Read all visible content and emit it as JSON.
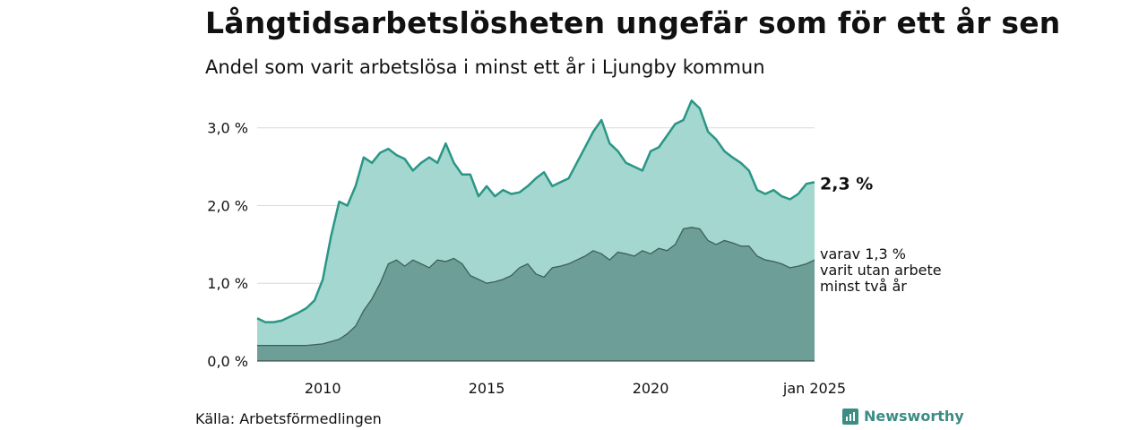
{
  "title": "Långtidsarbetslösheten ungefär som för ett år sen",
  "subtitle": "Andel som varit arbetslösa i minst ett år i Ljungby kommun",
  "source": "Källa: Arbetsförmedlingen",
  "brand": {
    "name": "Newsworthy",
    "icon": "newsworthy-logo-icon",
    "color": "#3c8c84"
  },
  "chart_data": {
    "type": "area",
    "x_tick_labels": [
      "2010",
      "2015",
      "2020",
      "jan 2025"
    ],
    "y_tick_labels": [
      "0,0 %",
      "1,0 %",
      "2,0 %",
      "3,0 %"
    ],
    "ylim": [
      0,
      3.4
    ],
    "grid": true,
    "x_start": 2008.0,
    "x_end": 2025.0,
    "end_labels": {
      "total": "2,3 %",
      "long": [
        "varav 1,3 %",
        "varit utan arbete",
        "minst två år"
      ]
    },
    "colors": {
      "total_fill": "#a3d7cf",
      "total_line": "#2a9686",
      "long_fill": "#6d9e97",
      "long_line": "#3f5f5a",
      "grid": "#d9d9d9"
    },
    "series": [
      {
        "name": "Minst ett år",
        "points": [
          [
            2008.0,
            0.55
          ],
          [
            2008.25,
            0.5
          ],
          [
            2008.5,
            0.5
          ],
          [
            2008.75,
            0.52
          ],
          [
            2009.0,
            0.57
          ],
          [
            2009.25,
            0.62
          ],
          [
            2009.5,
            0.68
          ],
          [
            2009.75,
            0.78
          ],
          [
            2010.0,
            1.05
          ],
          [
            2010.25,
            1.6
          ],
          [
            2010.5,
            2.05
          ],
          [
            2010.75,
            2.0
          ],
          [
            2011.0,
            2.25
          ],
          [
            2011.25,
            2.62
          ],
          [
            2011.5,
            2.55
          ],
          [
            2011.75,
            2.68
          ],
          [
            2012.0,
            2.73
          ],
          [
            2012.25,
            2.65
          ],
          [
            2012.5,
            2.6
          ],
          [
            2012.75,
            2.45
          ],
          [
            2013.0,
            2.55
          ],
          [
            2013.25,
            2.62
          ],
          [
            2013.5,
            2.55
          ],
          [
            2013.75,
            2.8
          ],
          [
            2014.0,
            2.55
          ],
          [
            2014.25,
            2.4
          ],
          [
            2014.5,
            2.4
          ],
          [
            2014.75,
            2.12
          ],
          [
            2015.0,
            2.25
          ],
          [
            2015.25,
            2.12
          ],
          [
            2015.5,
            2.2
          ],
          [
            2015.75,
            2.15
          ],
          [
            2016.0,
            2.17
          ],
          [
            2016.25,
            2.25
          ],
          [
            2016.5,
            2.35
          ],
          [
            2016.75,
            2.43
          ],
          [
            2017.0,
            2.25
          ],
          [
            2017.25,
            2.3
          ],
          [
            2017.5,
            2.35
          ],
          [
            2017.75,
            2.55
          ],
          [
            2018.0,
            2.75
          ],
          [
            2018.25,
            2.95
          ],
          [
            2018.5,
            3.1
          ],
          [
            2018.75,
            2.8
          ],
          [
            2019.0,
            2.7
          ],
          [
            2019.25,
            2.55
          ],
          [
            2019.5,
            2.5
          ],
          [
            2019.75,
            2.45
          ],
          [
            2020.0,
            2.7
          ],
          [
            2020.25,
            2.75
          ],
          [
            2020.5,
            2.9
          ],
          [
            2020.75,
            3.05
          ],
          [
            2021.0,
            3.1
          ],
          [
            2021.25,
            3.35
          ],
          [
            2021.5,
            3.25
          ],
          [
            2021.75,
            2.95
          ],
          [
            2022.0,
            2.85
          ],
          [
            2022.25,
            2.7
          ],
          [
            2022.5,
            2.62
          ],
          [
            2022.75,
            2.55
          ],
          [
            2023.0,
            2.45
          ],
          [
            2023.25,
            2.2
          ],
          [
            2023.5,
            2.15
          ],
          [
            2023.75,
            2.2
          ],
          [
            2024.0,
            2.12
          ],
          [
            2024.25,
            2.08
          ],
          [
            2024.5,
            2.15
          ],
          [
            2024.75,
            2.28
          ],
          [
            2025.0,
            2.3
          ]
        ]
      },
      {
        "name": "Minst två år",
        "points": [
          [
            2008.0,
            0.2
          ],
          [
            2008.5,
            0.2
          ],
          [
            2009.0,
            0.2
          ],
          [
            2009.5,
            0.2
          ],
          [
            2010.0,
            0.22
          ],
          [
            2010.5,
            0.28
          ],
          [
            2010.75,
            0.35
          ],
          [
            2011.0,
            0.45
          ],
          [
            2011.25,
            0.65
          ],
          [
            2011.5,
            0.8
          ],
          [
            2011.75,
            1.0
          ],
          [
            2012.0,
            1.25
          ],
          [
            2012.25,
            1.3
          ],
          [
            2012.5,
            1.22
          ],
          [
            2012.75,
            1.3
          ],
          [
            2013.0,
            1.25
          ],
          [
            2013.25,
            1.2
          ],
          [
            2013.5,
            1.3
          ],
          [
            2013.75,
            1.28
          ],
          [
            2014.0,
            1.32
          ],
          [
            2014.25,
            1.25
          ],
          [
            2014.5,
            1.1
          ],
          [
            2014.75,
            1.05
          ],
          [
            2015.0,
            1.0
          ],
          [
            2015.25,
            1.02
          ],
          [
            2015.5,
            1.05
          ],
          [
            2015.75,
            1.1
          ],
          [
            2016.0,
            1.2
          ],
          [
            2016.25,
            1.25
          ],
          [
            2016.5,
            1.12
          ],
          [
            2016.75,
            1.08
          ],
          [
            2017.0,
            1.2
          ],
          [
            2017.25,
            1.22
          ],
          [
            2017.5,
            1.25
          ],
          [
            2017.75,
            1.3
          ],
          [
            2018.0,
            1.35
          ],
          [
            2018.25,
            1.42
          ],
          [
            2018.5,
            1.38
          ],
          [
            2018.75,
            1.3
          ],
          [
            2019.0,
            1.4
          ],
          [
            2019.25,
            1.38
          ],
          [
            2019.5,
            1.35
          ],
          [
            2019.75,
            1.42
          ],
          [
            2020.0,
            1.38
          ],
          [
            2020.25,
            1.45
          ],
          [
            2020.5,
            1.42
          ],
          [
            2020.75,
            1.5
          ],
          [
            2021.0,
            1.7
          ],
          [
            2021.25,
            1.72
          ],
          [
            2021.5,
            1.7
          ],
          [
            2021.75,
            1.55
          ],
          [
            2022.0,
            1.5
          ],
          [
            2022.25,
            1.55
          ],
          [
            2022.5,
            1.52
          ],
          [
            2022.75,
            1.48
          ],
          [
            2023.0,
            1.48
          ],
          [
            2023.25,
            1.35
          ],
          [
            2023.5,
            1.3
          ],
          [
            2023.75,
            1.28
          ],
          [
            2024.0,
            1.25
          ],
          [
            2024.25,
            1.2
          ],
          [
            2024.5,
            1.22
          ],
          [
            2024.75,
            1.25
          ],
          [
            2025.0,
            1.3
          ]
        ]
      }
    ]
  }
}
